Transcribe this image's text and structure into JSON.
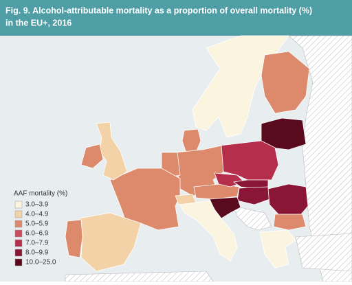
{
  "header": {
    "title_lines": [
      "Fig. 9. Alcohol-attributable mortality as a proportion of overall mortality (%)",
      "in the EU+, 2016"
    ]
  },
  "legend": {
    "title": "AAF mortality (%)",
    "items": [
      {
        "label": "3.0–3.9",
        "color": "#fbf5e0"
      },
      {
        "label": "4.0–4.9",
        "color": "#f2d2a6"
      },
      {
        "label": "5.0–5.9",
        "color": "#dc8a6b"
      },
      {
        "label": "6.0–6.9",
        "color": "#cc4d5d"
      },
      {
        "label": "7.0–7.9",
        "color": "#b52f4c"
      },
      {
        "label": "8.0–9.9",
        "color": "#8a1636"
      },
      {
        "label": "10.0–25.0",
        "color": "#5a0a1d"
      }
    ]
  }
}
